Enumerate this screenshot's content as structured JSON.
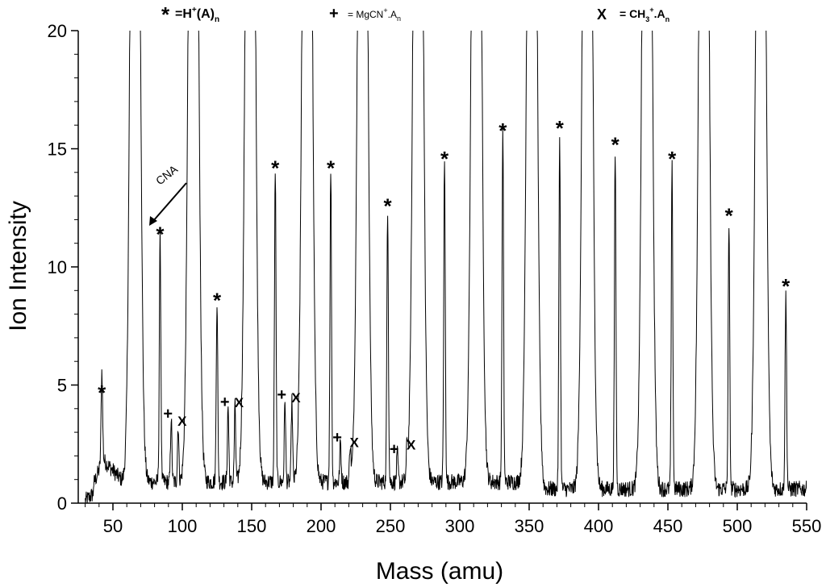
{
  "chart_data": {
    "type": "line",
    "xlabel": "Mass (amu)",
    "ylabel": "Ion Intensity",
    "xlim": [
      25,
      550
    ],
    "ylim": [
      0,
      20
    ],
    "xticks": [
      50,
      100,
      150,
      200,
      250,
      300,
      350,
      400,
      450,
      500,
      550
    ],
    "yticks": [
      0,
      5,
      10,
      15,
      20
    ],
    "grid": false,
    "legend_position": "top",
    "legend": [
      {
        "symbol": "*",
        "text": "=H",
        "sup": "+",
        "rest": "(A)",
        "sub": "n"
      },
      {
        "symbol": "+",
        "text": "= MgCN",
        "sup": "+",
        "rest": ".A",
        "sub": "n"
      },
      {
        "symbol": "X",
        "text": "= CH",
        "sub1": "3",
        "sup": "+",
        "rest": ".A",
        "sub": "n"
      }
    ],
    "tall_peaks": [
      66,
      108,
      149,
      190,
      230,
      270,
      312,
      352,
      392,
      435,
      476,
      517
    ],
    "star_peaks": [
      {
        "x": 42,
        "y": 4.3
      },
      {
        "x": 84,
        "y": 11.0
      },
      {
        "x": 125,
        "y": 8.2
      },
      {
        "x": 167,
        "y": 13.8
      },
      {
        "x": 207,
        "y": 13.8
      },
      {
        "x": 248,
        "y": 12.2
      },
      {
        "x": 289,
        "y": 14.2
      },
      {
        "x": 331,
        "y": 15.4
      },
      {
        "x": 372,
        "y": 15.5
      },
      {
        "x": 412,
        "y": 14.8
      },
      {
        "x": 453,
        "y": 14.2
      },
      {
        "x": 494,
        "y": 11.8
      },
      {
        "x": 535,
        "y": 8.8
      }
    ],
    "plus_peaks": [
      {
        "x": 92,
        "y": 3.5
      },
      {
        "x": 133,
        "y": 4.0
      },
      {
        "x": 174,
        "y": 4.3
      },
      {
        "x": 214,
        "y": 2.5
      },
      {
        "x": 255,
        "y": 2.0
      }
    ],
    "x_peaks": [
      {
        "x": 97,
        "y": 3.2
      },
      {
        "x": 138,
        "y": 4.0
      },
      {
        "x": 179,
        "y": 4.2
      },
      {
        "x": 221,
        "y": 2.3
      },
      {
        "x": 262,
        "y": 2.2
      }
    ],
    "annotations": [
      {
        "text": "CNA",
        "x": 68,
        "y": 11.8
      }
    ]
  }
}
